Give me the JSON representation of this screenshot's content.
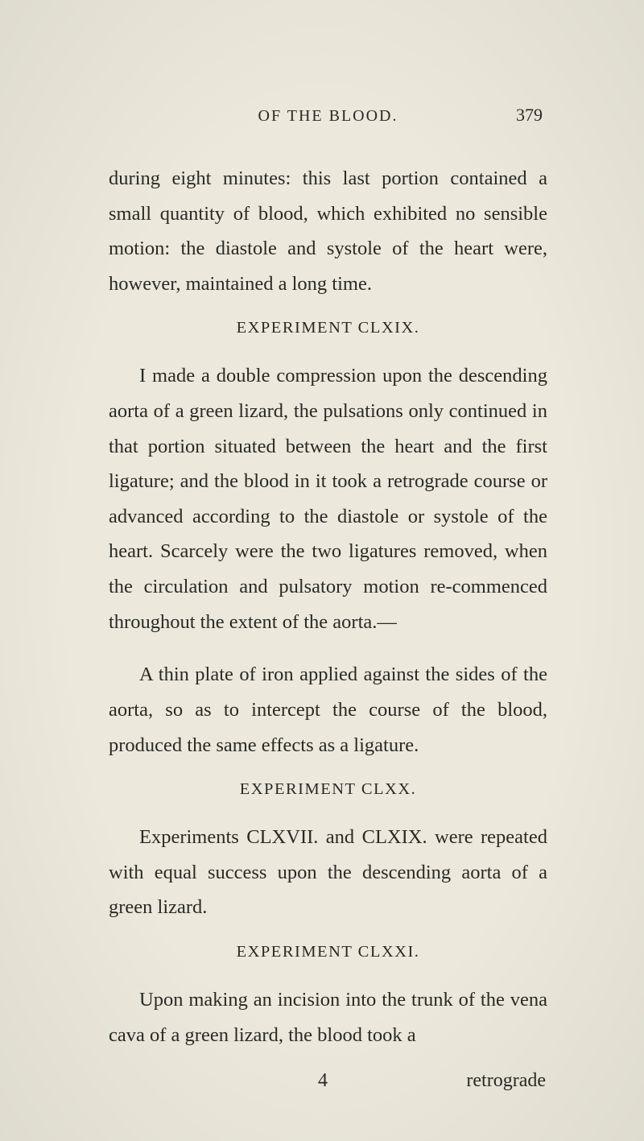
{
  "page": {
    "runningTitle": "OF THE BLOOD.",
    "number": "379",
    "signature": "4",
    "catchword": "retrograde"
  },
  "paras": {
    "p1": "during eight minutes: this last portion contained a small quantity of blood, which exhibited no sensible motion: the diastole and systole of the heart were, however, maintained a long time.",
    "h1": "EXPERIMENT CLXIX.",
    "p2": "I made a double compression upon the descend­ing aorta of a green lizard, the pulsations only continued in that portion situated between the heart and the first ligature; and the blood in it took a retrograde course or advanced according to the diastole or systole of the heart. Scarcely were the two ligatures removed, when the circu­lation and pulsatory motion re-commenced throughout the extent of the aorta.—",
    "p3": "A thin plate of iron applied against the sides of the aorta, so as to intercept the course of the blood, produced the same effects as a ligature.",
    "h2": "EXPERIMENT CLXX.",
    "p4": "Experiments CLXVII. and CLXIX. were repeated with equal success upon the descend­ing aorta of a green lizard.",
    "h3": "EXPERIMENT CLXXI.",
    "p5": "Upon making an incision into the trunk of the vena cava of a green lizard, the blood took a"
  },
  "style": {
    "background": "#ece9dc",
    "text_color": "#2a2a24",
    "body_fontsize": 24.5,
    "heading_fontsize": 20.5,
    "line_height": 1.78
  }
}
